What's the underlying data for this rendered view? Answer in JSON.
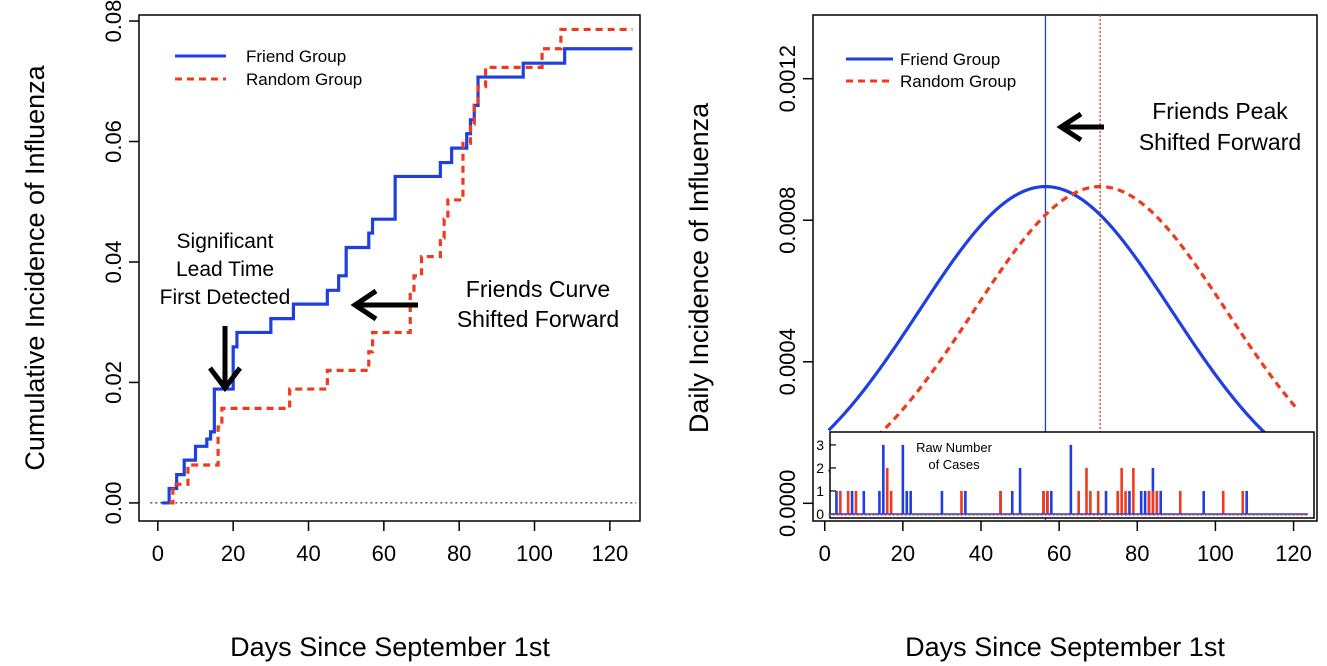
{
  "colors": {
    "friend": "#1f3fe0",
    "random": "#f03a1e"
  },
  "chart_data": [
    {
      "type": "line",
      "step": true,
      "xlabel": "Days Since September 1st",
      "ylabel": "Cumulative Incidence of Influenza",
      "xlim": [
        -5,
        128
      ],
      "ylim": [
        -0.003,
        0.081
      ],
      "xticks": [
        0,
        20,
        40,
        60,
        80,
        100,
        120
      ],
      "yticks": [
        0.0,
        0.02,
        0.04,
        0.06,
        0.08
      ],
      "xtick_labels": [
        "0",
        "20",
        "40",
        "60",
        "80",
        "100",
        "120"
      ],
      "ytick_labels": [
        "0.00",
        "0.02",
        "0.04",
        "0.06",
        "0.08"
      ],
      "reference_line": {
        "y": 0,
        "style": "dotted"
      },
      "legend": {
        "position": "top-left",
        "entries": [
          "Friend Group",
          "Random Group"
        ]
      },
      "annotations": {
        "lead_time": [
          "Significant",
          "Lead Time",
          "First Detected"
        ],
        "shift": [
          "Friends Curve",
          "Shifted Forward"
        ]
      },
      "series": [
        {
          "name": "Friend Group",
          "style": "solid",
          "x": [
            1,
            3,
            5,
            7,
            10,
            13,
            14,
            15,
            20,
            21,
            22,
            30,
            36,
            45,
            48,
            50,
            56,
            57,
            58,
            63,
            75,
            78,
            82,
            83,
            84,
            85,
            86,
            97,
            108,
            126
          ],
          "y": [
            0,
            0.0024,
            0.0047,
            0.0071,
            0.0094,
            0.0106,
            0.0118,
            0.0189,
            0.0259,
            0.0283,
            0.0283,
            0.0306,
            0.033,
            0.0353,
            0.0377,
            0.0424,
            0.0448,
            0.0471,
            0.0471,
            0.0542,
            0.0565,
            0.0589,
            0.0613,
            0.0636,
            0.066,
            0.0707,
            0.0707,
            0.073,
            0.0754,
            0.0754
          ]
        },
        {
          "name": "Random Group",
          "style": "dashed",
          "x": [
            3,
            4,
            6,
            8,
            16,
            17,
            22,
            35,
            45,
            56,
            57,
            65,
            67,
            68,
            70,
            75,
            76,
            77,
            81,
            83,
            84,
            85,
            87,
            91,
            102,
            107,
            126
          ],
          "y": [
            0,
            0.0031,
            0.0031,
            0.0063,
            0.0126,
            0.0157,
            0.0157,
            0.0189,
            0.022,
            0.0251,
            0.0283,
            0.0283,
            0.0346,
            0.0377,
            0.0409,
            0.044,
            0.0471,
            0.0503,
            0.0597,
            0.0629,
            0.066,
            0.0691,
            0.0723,
            0.0723,
            0.0754,
            0.0786,
            0.0786
          ]
        }
      ]
    },
    {
      "type": "line",
      "xlabel": "Days Since September 1st",
      "ylabel": "Daily Incidence of Influenza",
      "xlim": [
        -3,
        126
      ],
      "ylim": [
        -5e-05,
        0.00138
      ],
      "xticks": [
        0,
        20,
        40,
        60,
        80,
        100,
        120
      ],
      "yticks": [
        0.0,
        0.0004,
        0.0008,
        0.0012
      ],
      "xtick_labels": [
        "0",
        "20",
        "40",
        "60",
        "80",
        "100",
        "120"
      ],
      "ytick_labels": [
        "0.0000",
        "0.0004",
        "0.0008",
        "0.0012"
      ],
      "legend": {
        "position": "top-left",
        "entries": [
          "Friend Group",
          "Random Group"
        ]
      },
      "annotations": {
        "peak": [
          "Friends Peak",
          "Shifted Forward"
        ]
      },
      "peaks": {
        "friend": 56.5,
        "random": 70.5
      },
      "series": [
        {
          "name": "Friend Group",
          "style": "solid",
          "peak_x": 56.5,
          "peak_y": 0.000895,
          "sd": 32.4,
          "x_range": [
            1,
            121
          ]
        },
        {
          "name": "Random Group",
          "style": "dashed",
          "peak_x": 70.5,
          "peak_y": 0.000895,
          "sd": 32.4,
          "x_range": [
            1,
            121
          ]
        }
      ],
      "inset": {
        "title": [
          "Raw Number",
          "of Cases"
        ],
        "ylim": [
          0,
          3.3
        ],
        "yticks": [
          0,
          1,
          2,
          3
        ],
        "ytick_labels": [
          "0",
          "1",
          "2",
          "3"
        ],
        "series": [
          {
            "name": "Friend Group",
            "x": [
              3,
              7,
              10,
              14,
              15,
              20,
              21,
              22,
              30,
              36,
              45,
              48,
              50,
              56,
              57,
              58,
              63,
              72,
              75,
              78,
              81,
              82,
              83,
              84,
              85,
              86,
              97,
              108
            ],
            "y": [
              1,
              1,
              1,
              1,
              3,
              3,
              1,
              1,
              1,
              1,
              1,
              1,
              2,
              1,
              1,
              1,
              3,
              1,
              1,
              1,
              1,
              1,
              1,
              2,
              1,
              1,
              1,
              1
            ]
          },
          {
            "name": "Random Group",
            "x": [
              4,
              6,
              8,
              16,
              17,
              35,
              45,
              56,
              57,
              65,
              67,
              68,
              70,
              75,
              76,
              77,
              79,
              83,
              84,
              85,
              91,
              102,
              107
            ],
            "y": [
              1,
              1,
              1,
              2,
              1,
              1,
              1,
              1,
              1,
              1,
              2,
              1,
              1,
              1,
              2,
              1,
              2,
              1,
              1,
              1,
              1,
              1,
              1
            ]
          }
        ]
      }
    }
  ]
}
